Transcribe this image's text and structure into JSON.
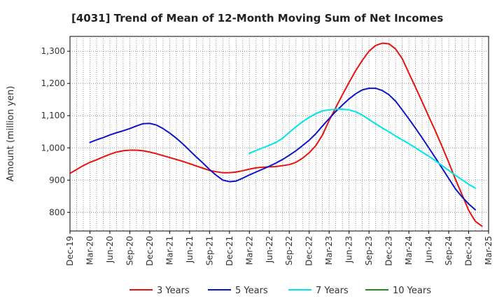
{
  "chart_data": {
    "type": "line",
    "title": "[4031]  Trend of Mean of 12-Month Moving Sum of Net Incomes",
    "xlabel": "",
    "ylabel": "Amount (million yen)",
    "ylim": [
      742,
      1346
    ],
    "yticks": [
      800,
      900,
      1000,
      1100,
      1200,
      1300
    ],
    "ytick_labels": [
      "800",
      "900",
      "1,000",
      "1,100",
      "1,200",
      "1,300"
    ],
    "x_categories": [
      "Dec-19",
      "Mar-20",
      "Jun-20",
      "Sep-20",
      "Dec-20",
      "Mar-21",
      "Jun-21",
      "Sep-21",
      "Dec-21",
      "Mar-22",
      "Jun-22",
      "Sep-22",
      "Dec-22",
      "Mar-23",
      "Jun-23",
      "Sep-23",
      "Dec-23",
      "Mar-24",
      "Jun-24",
      "Sep-24",
      "Dec-24",
      "Mar-25"
    ],
    "grid": true,
    "legend_position": "bottom",
    "series": [
      {
        "name": "3 Years",
        "color": "#e8120c",
        "start_index": 0,
        "values": [
          921,
          933,
          945,
          955,
          963,
          972,
          980,
          987,
          991,
          993,
          993,
          991,
          987,
          982,
          976,
          970,
          964,
          958,
          951,
          944,
          937,
          930,
          926,
          923,
          923,
          925,
          929,
          934,
          938,
          940,
          941,
          942,
          945,
          948,
          955,
          968,
          985,
          1007,
          1040,
          1085,
          1125,
          1165,
          1203,
          1240,
          1272,
          1300,
          1318,
          1325,
          1323,
          1307,
          1277,
          1232,
          1188,
          1143,
          1097,
          1052,
          1004,
          955,
          903,
          855,
          806,
          772,
          757
        ]
      },
      {
        "name": "5 Years",
        "color": "#0d14c8",
        "start_index": 3,
        "values": [
          1017,
          1025,
          1032,
          1040,
          1047,
          1053,
          1060,
          1068,
          1075,
          1076,
          1071,
          1060,
          1046,
          1030,
          1012,
          992,
          972,
          953,
          933,
          915,
          900,
          895,
          897,
          906,
          916,
          925,
          934,
          943,
          953,
          964,
          977,
          991,
          1007,
          1024,
          1044,
          1068,
          1091,
          1113,
          1133,
          1152,
          1168,
          1180,
          1185,
          1185,
          1178,
          1165,
          1145,
          1118,
          1090,
          1061,
          1031,
          1000,
          969,
          937,
          905,
          873,
          848,
          826,
          808
        ]
      },
      {
        "name": "7 Years",
        "color": "#00e5e8",
        "start_index": 27,
        "values": [
          983,
          992,
          1000,
          1008,
          1017,
          1030,
          1048,
          1065,
          1081,
          1095,
          1106,
          1115,
          1118,
          1120,
          1120,
          1118,
          1112,
          1102,
          1088,
          1075,
          1062,
          1050,
          1037,
          1025,
          1013,
          1000,
          987,
          974,
          960,
          945,
          930,
          915,
          901,
          887,
          875
        ]
      },
      {
        "name": "10 Years",
        "color": "#1e8c1e",
        "start_index": 0,
        "values": []
      }
    ]
  }
}
